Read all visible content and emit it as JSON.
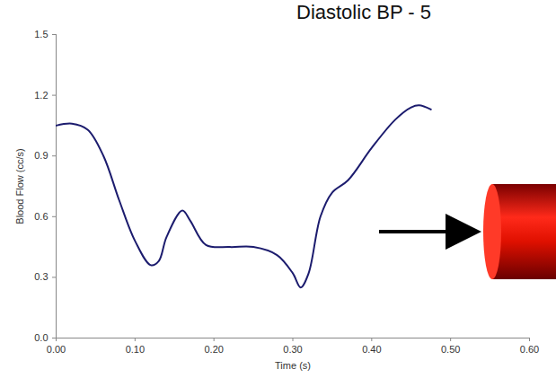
{
  "chart_data": {
    "type": "line",
    "title": "Diastolic BP - 5",
    "x_label": "Time (s)",
    "y_label": "Blood Flow (cc/s)",
    "x": [
      0.0,
      0.02,
      0.04,
      0.06,
      0.08,
      0.1,
      0.12,
      0.13,
      0.14,
      0.16,
      0.17,
      0.19,
      0.22,
      0.25,
      0.28,
      0.3,
      0.31,
      0.32,
      0.335,
      0.35,
      0.37,
      0.4,
      0.43,
      0.45,
      0.46,
      0.475
    ],
    "series": [
      {
        "name": "Blood Flow",
        "color": "#1c1c6e",
        "values": [
          1.05,
          1.06,
          1.03,
          0.9,
          0.68,
          0.48,
          0.36,
          0.38,
          0.5,
          0.63,
          0.58,
          0.46,
          0.45,
          0.45,
          0.41,
          0.32,
          0.25,
          0.32,
          0.6,
          0.72,
          0.78,
          0.94,
          1.08,
          1.14,
          1.15,
          1.13
        ]
      }
    ],
    "xlim": [
      0,
      0.6
    ],
    "xticks": [
      {
        "value": 0,
        "label": "0.00"
      },
      {
        "value": 0.1,
        "label": "0.10"
      },
      {
        "value": 0.2,
        "label": "0.20"
      },
      {
        "value": 0.3,
        "label": "0.30"
      },
      {
        "value": 0.4,
        "label": "0.40"
      },
      {
        "value": 0.5,
        "label": "0.50"
      },
      {
        "value": 0.6,
        "label": "0.60"
      }
    ],
    "ylim": [
      0,
      1.5
    ],
    "yticks": [
      {
        "value": 0,
        "label": "0.0"
      },
      {
        "value": 0.3,
        "label": "0.3"
      },
      {
        "value": 0.6,
        "label": "0.6"
      },
      {
        "value": 0.9,
        "label": "0.9"
      },
      {
        "value": 1.2,
        "label": "1.2"
      },
      {
        "value": 1.5,
        "label": "1.5"
      }
    ],
    "grid": false
  }
}
